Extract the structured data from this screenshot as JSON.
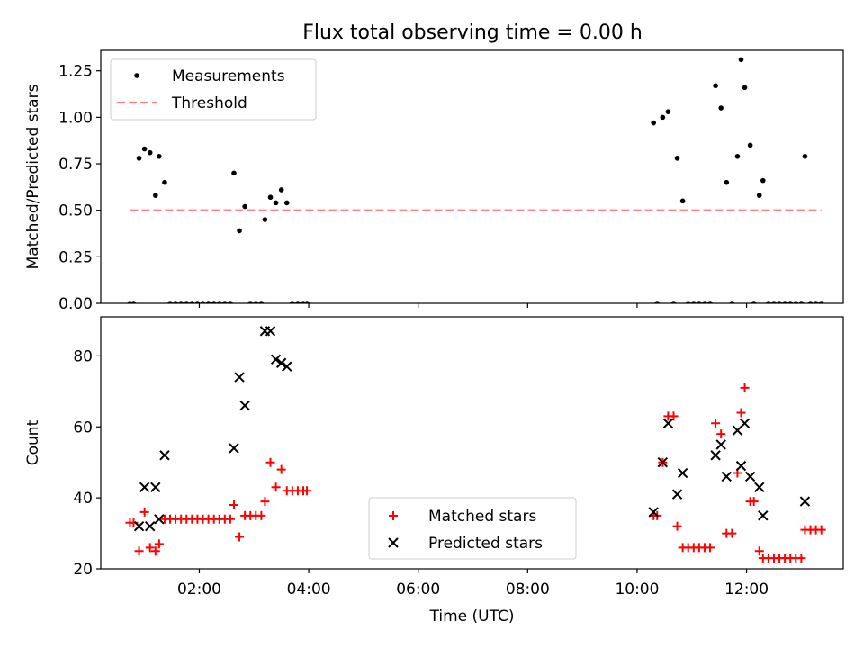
{
  "figure_title": "Flux total observing time = 0.00 h",
  "chart_data": [
    {
      "type": "scatter",
      "panel": "top",
      "xlabel": "",
      "ylabel": "Matched/Predicted stars",
      "xlim": [
        "00:12",
        "13:46"
      ],
      "ylim": [
        0,
        1.36
      ],
      "yticks": [
        0,
        0.25,
        0.5,
        0.75,
        1.0,
        1.25
      ],
      "ytick_labels": [
        "0.00",
        "0.25",
        "0.50",
        "0.75",
        "1.00",
        "1.25"
      ],
      "grid": false,
      "legend": "top-left",
      "series": [
        {
          "name": "Measurements",
          "kind": "points",
          "color": "#000000",
          "points": [
            [
              "00:44",
              0
            ],
            [
              "00:48",
              0
            ],
            [
              "00:54",
              0.78
            ],
            [
              "01:00",
              0.83
            ],
            [
              "01:06",
              0.81
            ],
            [
              "01:12",
              0.58
            ],
            [
              "01:16",
              0.79
            ],
            [
              "01:22",
              0.65
            ],
            [
              "01:28",
              0
            ],
            [
              "01:34",
              0
            ],
            [
              "01:40",
              0
            ],
            [
              "01:46",
              0
            ],
            [
              "01:52",
              0
            ],
            [
              "01:58",
              0
            ],
            [
              "02:04",
              0
            ],
            [
              "02:10",
              0
            ],
            [
              "02:16",
              0
            ],
            [
              "02:22",
              0
            ],
            [
              "02:28",
              0
            ],
            [
              "02:34",
              0
            ],
            [
              "02:38",
              0.7
            ],
            [
              "02:44",
              0.39
            ],
            [
              "02:50",
              0.52
            ],
            [
              "02:56",
              0
            ],
            [
              "03:02",
              0
            ],
            [
              "03:08",
              0
            ],
            [
              "03:12",
              0.45
            ],
            [
              "03:18",
              0.57
            ],
            [
              "03:24",
              0.54
            ],
            [
              "03:30",
              0.61
            ],
            [
              "03:36",
              0.54
            ],
            [
              "03:42",
              0
            ],
            [
              "03:48",
              0
            ],
            [
              "03:54",
              0
            ],
            [
              "03:58",
              0
            ],
            [
              "10:18",
              0.97
            ],
            [
              "10:22",
              0
            ],
            [
              "10:28",
              1.0
            ],
            [
              "10:34",
              1.03
            ],
            [
              "10:40",
              0
            ],
            [
              "10:44",
              0.78
            ],
            [
              "10:50",
              0.55
            ],
            [
              "10:56",
              0
            ],
            [
              "11:02",
              0
            ],
            [
              "11:08",
              0
            ],
            [
              "11:14",
              0
            ],
            [
              "11:20",
              0
            ],
            [
              "11:26",
              1.17
            ],
            [
              "11:32",
              1.05
            ],
            [
              "11:38",
              0.65
            ],
            [
              "11:44",
              0
            ],
            [
              "11:50",
              0.79
            ],
            [
              "11:54",
              1.31
            ],
            [
              "11:58",
              1.16
            ],
            [
              "12:04",
              0.85
            ],
            [
              "12:08",
              0
            ],
            [
              "12:14",
              0.58
            ],
            [
              "12:18",
              0.66
            ],
            [
              "12:24",
              0
            ],
            [
              "12:30",
              0
            ],
            [
              "12:36",
              0
            ],
            [
              "12:42",
              0
            ],
            [
              "12:48",
              0
            ],
            [
              "12:54",
              0
            ],
            [
              "13:00",
              0
            ],
            [
              "13:04",
              0.79
            ],
            [
              "13:10",
              0
            ],
            [
              "13:16",
              0
            ],
            [
              "13:22",
              0
            ]
          ]
        },
        {
          "name": "Threshold",
          "kind": "dashed-line",
          "color": "#ff8080",
          "points": [
            [
              "00:44",
              0.5
            ],
            [
              "13:22",
              0.5
            ]
          ]
        }
      ]
    },
    {
      "type": "scatter",
      "panel": "bottom",
      "xlabel": "Time (UTC)",
      "ylabel": "Count",
      "xlim": [
        "00:12",
        "13:46"
      ],
      "ylim": [
        20,
        91
      ],
      "yticks": [
        20,
        40,
        60,
        80
      ],
      "ytick_labels": [
        "20",
        "40",
        "60",
        "80"
      ],
      "xticks": [
        "02:00",
        "04:00",
        "06:00",
        "08:00",
        "10:00",
        "12:00"
      ],
      "grid": false,
      "legend": "lower-center",
      "series": [
        {
          "name": "Matched stars",
          "marker": "+",
          "color": "#ff0000",
          "points": [
            [
              "00:44",
              33
            ],
            [
              "00:48",
              33
            ],
            [
              "00:54",
              25
            ],
            [
              "01:00",
              36
            ],
            [
              "01:06",
              26
            ],
            [
              "01:12",
              25
            ],
            [
              "01:16",
              27
            ],
            [
              "01:22",
              34
            ],
            [
              "01:28",
              34
            ],
            [
              "01:34",
              34
            ],
            [
              "01:40",
              34
            ],
            [
              "01:46",
              34
            ],
            [
              "01:52",
              34
            ],
            [
              "01:58",
              34
            ],
            [
              "02:04",
              34
            ],
            [
              "02:10",
              34
            ],
            [
              "02:16",
              34
            ],
            [
              "02:22",
              34
            ],
            [
              "02:28",
              34
            ],
            [
              "02:34",
              34
            ],
            [
              "02:38",
              38
            ],
            [
              "02:44",
              29
            ],
            [
              "02:50",
              35
            ],
            [
              "02:56",
              35
            ],
            [
              "03:02",
              35
            ],
            [
              "03:08",
              35
            ],
            [
              "03:12",
              39
            ],
            [
              "03:18",
              50
            ],
            [
              "03:24",
              43
            ],
            [
              "03:30",
              48
            ],
            [
              "03:36",
              42
            ],
            [
              "03:42",
              42
            ],
            [
              "03:48",
              42
            ],
            [
              "03:54",
              42
            ],
            [
              "03:58",
              42
            ],
            [
              "10:18",
              35
            ],
            [
              "10:22",
              35
            ],
            [
              "10:28",
              50
            ],
            [
              "10:34",
              63
            ],
            [
              "10:40",
              63
            ],
            [
              "10:44",
              32
            ],
            [
              "10:50",
              26
            ],
            [
              "10:56",
              26
            ],
            [
              "11:02",
              26
            ],
            [
              "11:08",
              26
            ],
            [
              "11:14",
              26
            ],
            [
              "11:20",
              26
            ],
            [
              "11:26",
              61
            ],
            [
              "11:32",
              58
            ],
            [
              "11:38",
              30
            ],
            [
              "11:44",
              30
            ],
            [
              "11:50",
              47
            ],
            [
              "11:54",
              64
            ],
            [
              "11:58",
              71
            ],
            [
              "12:04",
              39
            ],
            [
              "12:08",
              39
            ],
            [
              "12:14",
              25
            ],
            [
              "12:18",
              23
            ],
            [
              "12:24",
              23
            ],
            [
              "12:30",
              23
            ],
            [
              "12:36",
              23
            ],
            [
              "12:42",
              23
            ],
            [
              "12:48",
              23
            ],
            [
              "12:54",
              23
            ],
            [
              "13:00",
              23
            ],
            [
              "13:04",
              31
            ],
            [
              "13:10",
              31
            ],
            [
              "13:16",
              31
            ],
            [
              "13:22",
              31
            ]
          ]
        },
        {
          "name": "Predicted stars",
          "marker": "x",
          "color": "#000000",
          "points": [
            [
              "00:54",
              32
            ],
            [
              "01:00",
              43
            ],
            [
              "01:06",
              32
            ],
            [
              "01:12",
              43
            ],
            [
              "01:16",
              34
            ],
            [
              "01:22",
              52
            ],
            [
              "02:38",
              54
            ],
            [
              "02:44",
              74
            ],
            [
              "02:50",
              66
            ],
            [
              "03:12",
              87
            ],
            [
              "03:18",
              87
            ],
            [
              "03:24",
              79
            ],
            [
              "03:30",
              78
            ],
            [
              "03:36",
              77
            ],
            [
              "10:18",
              36
            ],
            [
              "10:34",
              61
            ],
            [
              "10:28",
              50
            ],
            [
              "10:44",
              41
            ],
            [
              "10:50",
              47
            ],
            [
              "11:26",
              52
            ],
            [
              "11:32",
              55
            ],
            [
              "11:38",
              46
            ],
            [
              "11:50",
              59
            ],
            [
              "11:54",
              49
            ],
            [
              "11:58",
              61
            ],
            [
              "12:04",
              46
            ],
            [
              "12:14",
              43
            ],
            [
              "12:18",
              35
            ],
            [
              "13:04",
              39
            ]
          ]
        }
      ]
    }
  ]
}
